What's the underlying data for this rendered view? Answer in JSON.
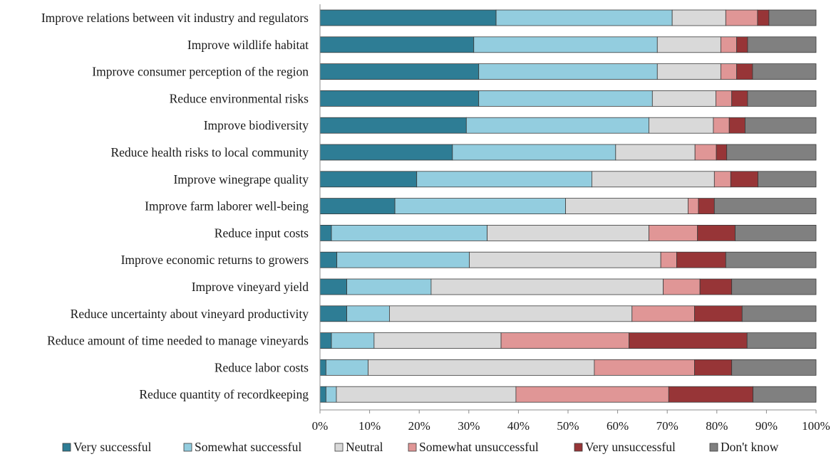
{
  "chart_data": {
    "type": "bar",
    "orientation": "horizontal",
    "stacked": "percent",
    "title": "",
    "xlabel": "",
    "ylabel": "",
    "xlim": [
      0,
      100
    ],
    "x_ticks": [
      "0%",
      "10%",
      "20%",
      "30%",
      "40%",
      "50%",
      "60%",
      "70%",
      "80%",
      "90%",
      "100%"
    ],
    "grid": false,
    "legend_position": "bottom",
    "categories": [
      "Improve relations between vit industry and regulators",
      "Improve wildlife habitat",
      "Improve consumer perception of the region",
      "Reduce environmental risks",
      "Improve biodiversity",
      "Reduce health risks to local community",
      "Improve winegrape quality",
      "Improve farm laborer well-being",
      "Reduce input costs",
      "Improve economic returns to growers",
      "Improve vineyard yield",
      "Reduce uncertainty about vineyard productivity",
      "Reduce amount of time needed to manage vineyards",
      "Reduce labor costs",
      "Reduce quantity of recordkeeping"
    ],
    "series": [
      {
        "name": "Very successful",
        "color": "#2e7d95",
        "values": [
          35.5,
          31.0,
          32.0,
          32.0,
          29.5,
          26.7,
          19.5,
          15.1,
          2.3,
          3.4,
          5.4,
          5.4,
          2.3,
          1.2,
          1.2
        ]
      },
      {
        "name": "Somewhat successful",
        "color": "#93cddf",
        "values": [
          35.5,
          37.0,
          36.0,
          35.0,
          36.8,
          32.9,
          35.3,
          34.4,
          31.4,
          26.7,
          17.0,
          8.6,
          8.6,
          8.5,
          2.1
        ]
      },
      {
        "name": "Neutral",
        "color": "#d9d9d9",
        "values": [
          10.8,
          12.8,
          12.8,
          12.8,
          13.0,
          16.0,
          24.7,
          24.7,
          32.6,
          38.6,
          46.8,
          48.9,
          25.6,
          45.6,
          36.2
        ]
      },
      {
        "name": "Somewhat unsuccessful",
        "color": "#e09696",
        "values": [
          6.4,
          3.2,
          3.2,
          3.2,
          3.2,
          4.3,
          3.3,
          2.1,
          9.8,
          3.2,
          7.4,
          12.6,
          25.8,
          20.2,
          30.8
        ]
      },
      {
        "name": "Very unsuccessful",
        "color": "#973537",
        "values": [
          2.3,
          2.2,
          3.2,
          3.2,
          3.2,
          2.1,
          5.5,
          3.2,
          7.6,
          9.9,
          6.4,
          9.6,
          23.8,
          7.5,
          17.0
        ]
      },
      {
        "name": "Don't know",
        "color": "#808080",
        "values": [
          9.5,
          13.8,
          12.8,
          13.8,
          14.3,
          18.0,
          11.7,
          20.5,
          16.3,
          18.2,
          17.0,
          14.9,
          13.9,
          17.0,
          12.7
        ]
      }
    ]
  }
}
